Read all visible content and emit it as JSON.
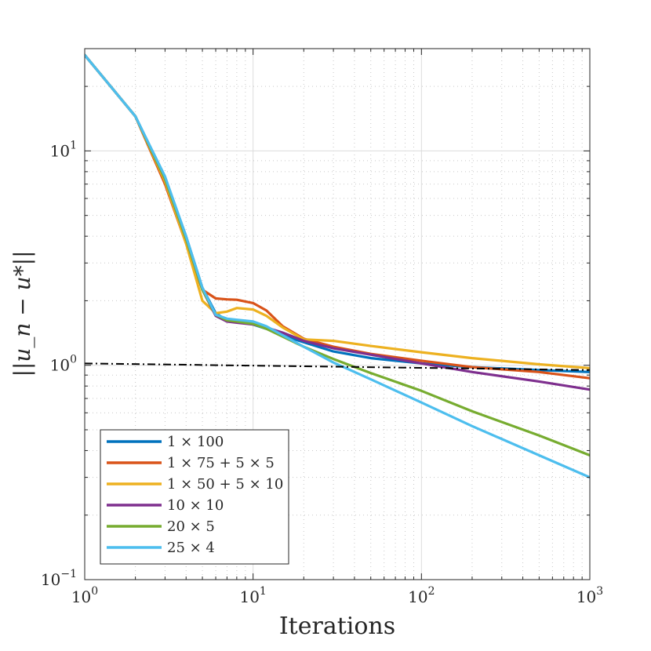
{
  "chart_data": {
    "type": "line",
    "xscale": "log",
    "yscale": "log",
    "xlim": [
      1,
      1000
    ],
    "ylim": [
      0.1,
      30
    ],
    "xlabel": "Iterations",
    "ylabel": "||u_n − u*||",
    "xticks": [
      {
        "value": 1,
        "base": "10",
        "exp": "0"
      },
      {
        "value": 10,
        "base": "10",
        "exp": "1"
      },
      {
        "value": 100,
        "base": "10",
        "exp": "2"
      },
      {
        "value": 1000,
        "base": "10",
        "exp": "3"
      }
    ],
    "yticks": [
      {
        "value": 0.1,
        "base": "10",
        "exp": "−1"
      },
      {
        "value": 1,
        "base": "10",
        "exp": "0"
      },
      {
        "value": 10,
        "base": "10",
        "exp": "1"
      }
    ],
    "grid": true,
    "legend_position": "bottom-left",
    "reference_line": {
      "style": "dash-dot",
      "color": "#000000",
      "x": [
        1,
        1000
      ],
      "y": [
        1.02,
        0.95
      ]
    },
    "series": [
      {
        "name": "1 × 100",
        "color": "#0072BD",
        "x": [
          1,
          2,
          3,
          4,
          5,
          6,
          7,
          8,
          10,
          12,
          15,
          20,
          30,
          50,
          100,
          200,
          500,
          1000
        ],
        "y": [
          28,
          14.5,
          7.5,
          4.0,
          2.3,
          1.75,
          1.62,
          1.6,
          1.55,
          1.48,
          1.38,
          1.28,
          1.16,
          1.08,
          1.02,
          0.98,
          0.95,
          0.93
        ]
      },
      {
        "name": "1 × 75 + 5 × 5",
        "color": "#D95319",
        "x": [
          1,
          2,
          3,
          4,
          5,
          6,
          7,
          8,
          10,
          12,
          15,
          20,
          30,
          50,
          100,
          200,
          500,
          1000
        ],
        "y": [
          28,
          14.5,
          7.0,
          3.7,
          2.25,
          2.05,
          2.03,
          2.02,
          1.95,
          1.8,
          1.52,
          1.33,
          1.22,
          1.13,
          1.05,
          0.98,
          0.93,
          0.87
        ]
      },
      {
        "name": "1 × 50 + 5 × 10",
        "color": "#EDB120",
        "x": [
          1,
          2,
          3,
          4,
          5,
          6,
          7,
          8,
          10,
          12,
          15,
          20,
          30,
          50,
          100,
          200,
          500,
          1000
        ],
        "y": [
          28,
          14.5,
          7.2,
          3.7,
          2.0,
          1.75,
          1.78,
          1.85,
          1.82,
          1.7,
          1.5,
          1.32,
          1.3,
          1.23,
          1.15,
          1.08,
          1.01,
          0.97
        ]
      },
      {
        "name": "10 × 10",
        "color": "#7E2F8E",
        "x": [
          1,
          2,
          3,
          4,
          5,
          6,
          7,
          8,
          10,
          12,
          15,
          20,
          30,
          50,
          100,
          200,
          500,
          1000
        ],
        "y": [
          28,
          14.5,
          7.4,
          3.9,
          2.25,
          1.7,
          1.6,
          1.58,
          1.55,
          1.5,
          1.42,
          1.3,
          1.2,
          1.12,
          1.02,
          0.93,
          0.84,
          0.77
        ]
      },
      {
        "name": "20 × 5",
        "color": "#77AC30",
        "x": [
          1,
          2,
          3,
          4,
          5,
          6,
          7,
          8,
          10,
          12,
          15,
          20,
          30,
          50,
          100,
          200,
          500,
          1000
        ],
        "y": [
          28,
          14.5,
          7.4,
          3.9,
          2.25,
          1.72,
          1.62,
          1.6,
          1.56,
          1.48,
          1.36,
          1.22,
          1.07,
          0.92,
          0.76,
          0.61,
          0.47,
          0.38
        ]
      },
      {
        "name": "25 × 4",
        "color": "#4DBEEE",
        "x": [
          1,
          2,
          3,
          4,
          5,
          6,
          7,
          8,
          10,
          12,
          15,
          20,
          30,
          50,
          100,
          200,
          500,
          1000
        ],
        "y": [
          28,
          14.5,
          7.6,
          4.0,
          2.3,
          1.72,
          1.65,
          1.63,
          1.6,
          1.52,
          1.38,
          1.22,
          1.03,
          0.86,
          0.67,
          0.52,
          0.38,
          0.3
        ]
      }
    ]
  }
}
